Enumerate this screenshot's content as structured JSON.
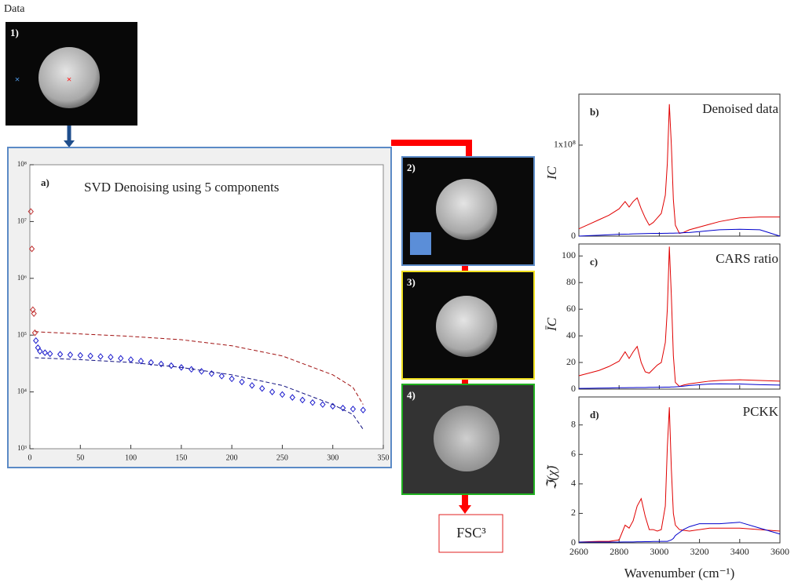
{
  "header": {
    "data_label": "Data",
    "fsc_label": "FSC³"
  },
  "images": [
    {
      "label": "1)"
    },
    {
      "label": "2)"
    },
    {
      "label": "3)"
    },
    {
      "label": "4)"
    }
  ],
  "chart_data": [
    {
      "type": "scatter",
      "panel_label": "a)",
      "title": "SVD Denoising using 5 components",
      "ylog": true,
      "xlim": [
        0,
        350
      ],
      "xticks": [
        0,
        50,
        100,
        150,
        200,
        250,
        300,
        350
      ],
      "ylim": [
        1000,
        100000000
      ],
      "yticks": [
        {
          "value": 1000,
          "label": "10³"
        },
        {
          "value": 10000,
          "label": "10⁴"
        },
        {
          "value": 100000,
          "label": "10⁵"
        },
        {
          "value": 1000000,
          "label": "10⁶"
        },
        {
          "value": 10000000,
          "label": "10⁷"
        },
        {
          "value": 100000000,
          "label": "10⁸"
        }
      ],
      "xtick_labels": true,
      "series": [
        {
          "style": "marker",
          "color": "#c03030",
          "x": [
            1,
            2,
            3,
            4,
            5
          ],
          "values": [
            15000000,
            3300000,
            280000,
            240000,
            110000
          ]
        },
        {
          "style": "marker",
          "color": "#1a1acc",
          "x": [
            6,
            8,
            10,
            15,
            20,
            30,
            40,
            50,
            60,
            70,
            80,
            90,
            100,
            110,
            120,
            130,
            140,
            150,
            160,
            170,
            180,
            190,
            200,
            210,
            220,
            230,
            240,
            250,
            260,
            270,
            280,
            290,
            300,
            310,
            320,
            330
          ],
          "values": [
            80000,
            60000,
            52000,
            49000,
            47000,
            46000,
            45000,
            44000,
            43000,
            42000,
            41000,
            39000,
            37000,
            35000,
            33000,
            31000,
            29000,
            27000,
            25000,
            23000,
            21000,
            19000,
            17000,
            15000,
            13000,
            11500,
            10000,
            9000,
            8000,
            7200,
            6500,
            6000,
            5600,
            5200,
            5000,
            4800
          ]
        },
        {
          "style": "dashed",
          "color": "#a01010",
          "x": [
            5,
            50,
            100,
            150,
            200,
            250,
            300,
            320,
            330
          ],
          "values": [
            115000,
            105000,
            95000,
            83000,
            65000,
            43000,
            20000,
            12000,
            6000
          ]
        },
        {
          "style": "dashed",
          "color": "#101080",
          "x": [
            5,
            50,
            100,
            150,
            200,
            250,
            300,
            320,
            330
          ],
          "values": [
            40000,
            37000,
            33000,
            27000,
            20000,
            13000,
            6000,
            4000,
            2200
          ]
        }
      ]
    },
    {
      "type": "line",
      "panel_label": "b)",
      "title": "Denoised data",
      "y_label": "IC",
      "xlim": [
        2600,
        3600
      ],
      "xticks": [
        2600,
        2800,
        3000,
        3200,
        3400,
        3600
      ],
      "xtick_labels": false,
      "ylim": [
        0,
        156000000
      ],
      "yticks": [
        0,
        {
          "value": 100000000,
          "label": "1x10⁸"
        }
      ],
      "x": [
        2600,
        2650,
        2700,
        2750,
        2800,
        2830,
        2850,
        2870,
        2890,
        2910,
        2930,
        2950,
        2970,
        2990,
        3010,
        3030,
        3040,
        3050,
        3060,
        3070,
        3080,
        3100,
        3120,
        3150,
        3200,
        3250,
        3300,
        3400,
        3500,
        3600
      ],
      "series": [
        {
          "color": "#e00000",
          "values": [
            8000000,
            13000000,
            18000000,
            23000000,
            30000000,
            38000000,
            32000000,
            38000000,
            42000000,
            30000000,
            20000000,
            12000000,
            15000000,
            20000000,
            25000000,
            45000000,
            80000000,
            145000000,
            100000000,
            40000000,
            12000000,
            3000000,
            4000000,
            7000000,
            10000000,
            13000000,
            16000000,
            20000000,
            21000000,
            21000000
          ]
        },
        {
          "color": "#0000cc",
          "values": [
            0,
            500000,
            1000000,
            1500000,
            2000000,
            2200000,
            2300000,
            2500000,
            2600000,
            2700000,
            2800000,
            2900000,
            3000000,
            3000000,
            3000000,
            3100000,
            3100000,
            3200000,
            3200000,
            3200000,
            3300000,
            3500000,
            3800000,
            4000000,
            5000000,
            6000000,
            7000000,
            7500000,
            7000000,
            0
          ]
        }
      ]
    },
    {
      "type": "line",
      "panel_label": "c)",
      "title": "CARS ratio",
      "y_label": "ĪC",
      "xlim": [
        2600,
        3600
      ],
      "xticks": [
        2600,
        2800,
        3000,
        3200,
        3400,
        3600
      ],
      "xtick_labels": false,
      "ylim": [
        0,
        109
      ],
      "yticks": [
        0,
        20,
        40,
        60,
        80,
        100
      ],
      "x": [
        2600,
        2650,
        2700,
        2750,
        2800,
        2830,
        2850,
        2870,
        2890,
        2910,
        2930,
        2950,
        2970,
        2990,
        3010,
        3030,
        3040,
        3050,
        3060,
        3070,
        3080,
        3100,
        3120,
        3150,
        3200,
        3250,
        3300,
        3400,
        3500,
        3600
      ],
      "series": [
        {
          "color": "#e00000",
          "values": [
            10,
            12,
            14,
            17,
            21,
            28,
            23,
            28,
            32,
            20,
            13,
            12,
            15,
            18,
            20,
            35,
            60,
            107,
            70,
            25,
            5,
            2,
            3,
            4,
            5,
            6,
            6.5,
            7,
            6.5,
            6
          ]
        },
        {
          "color": "#0000cc",
          "values": [
            0.5,
            0.6,
            0.7,
            0.8,
            1,
            1,
            1.1,
            1.1,
            1.2,
            1.2,
            1.2,
            1.3,
            1.3,
            1.4,
            1.4,
            1.5,
            1.5,
            1.5,
            1.6,
            1.6,
            1.7,
            1.9,
            2.2,
            2.7,
            3.3,
            3.8,
            4,
            3.8,
            3.3,
            3
          ]
        }
      ]
    },
    {
      "type": "line",
      "panel_label": "d)",
      "title": "PCKK",
      "y_label": "ℑ(χ̃)",
      "x_label": "Wavenumber (cm⁻¹)",
      "xlim": [
        2600,
        3600
      ],
      "xticks": [
        2600,
        2800,
        3000,
        3200,
        3400,
        3600
      ],
      "xtick_labels": true,
      "ylim": [
        0,
        9.9
      ],
      "yticks": [
        0,
        2,
        4,
        6,
        8
      ],
      "x": [
        2600,
        2650,
        2700,
        2750,
        2800,
        2830,
        2850,
        2870,
        2890,
        2910,
        2930,
        2950,
        2970,
        2990,
        3010,
        3030,
        3040,
        3050,
        3060,
        3070,
        3080,
        3100,
        3120,
        3150,
        3200,
        3250,
        3300,
        3400,
        3500,
        3600
      ],
      "series": [
        {
          "color": "#e00000",
          "values": [
            0.05,
            0.08,
            0.1,
            0.1,
            0.2,
            1.2,
            1,
            1.5,
            2.5,
            3,
            1.8,
            0.9,
            0.9,
            0.8,
            0.9,
            2.5,
            6.5,
            9.2,
            5,
            2,
            1.2,
            0.9,
            0.85,
            0.8,
            0.9,
            1,
            1,
            1,
            0.9,
            0.8
          ]
        },
        {
          "color": "#0000cc",
          "values": [
            0.05,
            0.05,
            0.05,
            0.05,
            0.05,
            0.06,
            0.06,
            0.06,
            0.07,
            0.07,
            0.08,
            0.08,
            0.09,
            0.09,
            0.1,
            0.1,
            0.1,
            0.15,
            0.2,
            0.3,
            0.5,
            0.7,
            0.9,
            1.1,
            1.3,
            1.3,
            1.3,
            1.4,
            1,
            0.6
          ]
        }
      ]
    }
  ]
}
